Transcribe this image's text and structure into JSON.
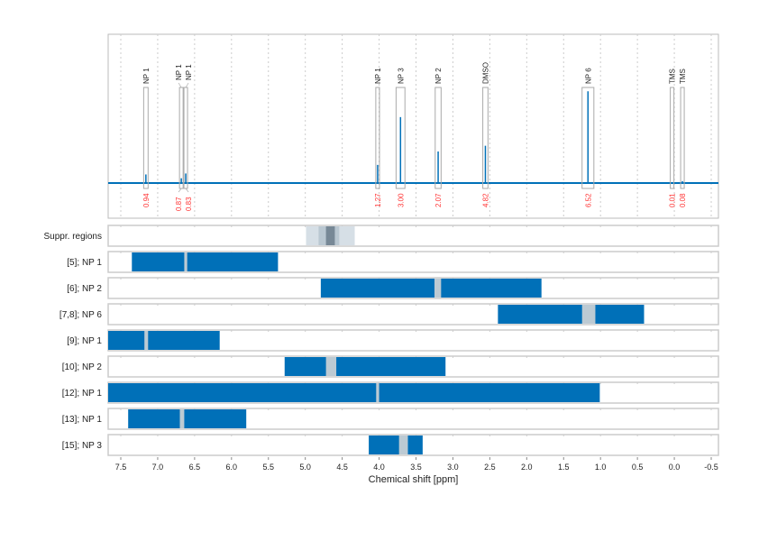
{
  "chart_data": {
    "type": "nmr-spectrum-with-region-bars",
    "xlabel": "Chemical shift [ppm]",
    "xlim": [
      7.68,
      -0.61
    ],
    "x_reversed": true,
    "x_ticks": [
      7.5,
      7.0,
      6.5,
      6.0,
      5.5,
      5.0,
      4.5,
      4.0,
      3.5,
      3.0,
      2.5,
      2.0,
      1.5,
      1.0,
      0.5,
      0.0,
      -0.5
    ],
    "x_tick_labels": [
      "7.5",
      "7.0",
      "6.5",
      "6.0",
      "5.5",
      "5.0",
      "4.5",
      "4.0",
      "3.5",
      "3.0",
      "2.5",
      "2.0",
      "1.5",
      "1.0",
      "0.5",
      "0.0",
      "-0.5"
    ],
    "grid": true,
    "spectrum_color": "#0070b8",
    "integral_color": "#ff3333",
    "peaks": [
      {
        "label": "NP 1",
        "ppm": 7.16,
        "height": 0.09,
        "integral": "0.94"
      },
      {
        "label": "NP 1",
        "ppm": 6.68,
        "height": 0.05,
        "integral": "0.87"
      },
      {
        "label": "NP 1",
        "ppm": 6.62,
        "height": 0.1,
        "integral": "0.83"
      },
      {
        "label": "NP 1",
        "ppm": 4.02,
        "height": 0.19,
        "integral": "1.27"
      },
      {
        "label": "NP 3",
        "ppm": 3.71,
        "height": 0.69,
        "integral": "3.00"
      },
      {
        "label": "NP 2",
        "ppm": 3.2,
        "height": 0.33,
        "integral": "2.07"
      },
      {
        "label": "DMSO",
        "ppm": 2.56,
        "height": 0.39,
        "integral": "4.82"
      },
      {
        "label": "NP 6",
        "ppm": 1.17,
        "height": 0.96,
        "integral": "6.52"
      },
      {
        "label": "TMS",
        "ppm": 0.03,
        "height": 0.0,
        "integral": "0.01"
      },
      {
        "label": "TMS",
        "ppm": -0.11,
        "height": 0.02,
        "integral": "0.08"
      }
    ],
    "peak_box_widths_ppm": [
      0.06,
      0.04,
      0.04,
      0.05,
      0.12,
      0.08,
      0.07,
      0.16,
      0.04,
      0.04
    ],
    "suppression": {
      "label": "Suppr. regions",
      "outer": [
        4.99,
        4.33
      ],
      "middle": [
        4.82,
        4.54
      ],
      "inner": [
        4.72,
        4.6
      ]
    },
    "rows": [
      {
        "label": "[5]; NP 1",
        "range": [
          7.35,
          5.37
        ],
        "gap": [
          6.64,
          6.6
        ]
      },
      {
        "label": "[6]; NP 2",
        "range": [
          4.79,
          1.8
        ],
        "gap": [
          3.25,
          3.16
        ]
      },
      {
        "label": "[7,8]; NP 6",
        "range": [
          2.39,
          0.41
        ],
        "gap": [
          1.25,
          1.07
        ]
      },
      {
        "label": "[9]; NP 1",
        "range": [
          7.68,
          6.16
        ],
        "gap": [
          7.18,
          7.13
        ]
      },
      {
        "label": "[10]; NP 2",
        "range": [
          5.28,
          3.1
        ],
        "gap": [
          4.72,
          4.58
        ]
      },
      {
        "label": "[12]; NP 1",
        "range": [
          7.68,
          1.01
        ],
        "gap": [
          4.04,
          4.0
        ]
      },
      {
        "label": "[13]; NP 1",
        "range": [
          7.4,
          5.8
        ],
        "gap": [
          6.7,
          6.64
        ]
      },
      {
        "label": "[15]; NP 3",
        "range": [
          4.14,
          3.41
        ],
        "gap": [
          3.73,
          3.61
        ]
      }
    ],
    "bar_color": "#0070b8",
    "gap_color": "#bccad3"
  }
}
